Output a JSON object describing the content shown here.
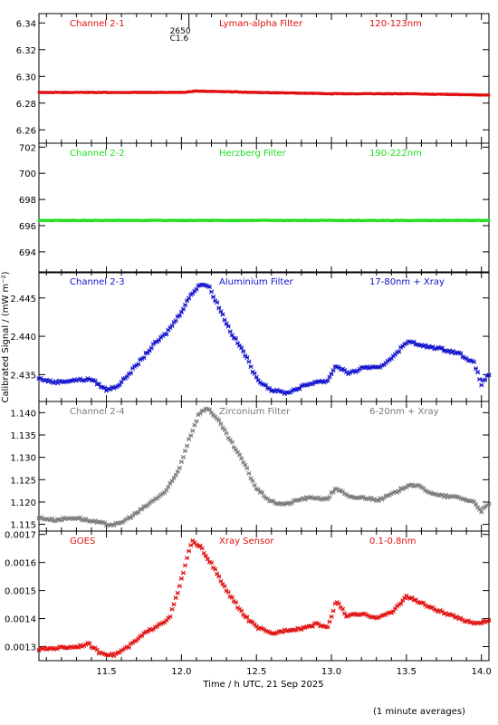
{
  "chart_data": {
    "type": "scatter",
    "x_label": "Time / h UTC, 21 Sep 2025",
    "y_label": "Calibrated Signal / (mW m⁻²)",
    "x_range": [
      11.05,
      14.05
    ],
    "x_ticks": [
      "11.5",
      "12.0",
      "12.5",
      "13.0",
      "13.5",
      "14.0"
    ],
    "footnote": "(1 minute averages)",
    "flare_marker": {
      "x": 12.05,
      "lines": [
        "2650",
        "C1.6"
      ]
    },
    "panels": [
      {
        "channel": "Channel 2-1",
        "filter": "Lyman-alpha Filter",
        "band": "120-123nm",
        "color": "#e01010",
        "y_range": [
          6.25,
          6.347
        ],
        "y_ticks": [
          "6.26",
          "6.28",
          "6.30",
          "6.32",
          "6.34"
        ],
        "tick_values": [
          6.26,
          6.28,
          6.3,
          6.32,
          6.34
        ],
        "points": [
          [
            11.05,
            6.288
          ],
          [
            11.5,
            6.288
          ],
          [
            12.0,
            6.288
          ],
          [
            12.1,
            6.289
          ],
          [
            12.5,
            6.288
          ],
          [
            13.0,
            6.287
          ],
          [
            13.5,
            6.287
          ],
          [
            14.05,
            6.286
          ]
        ]
      },
      {
        "channel": "Channel 2-2",
        "filter": "Herzberg Filter",
        "band": "190-222nm",
        "color": "#20e020",
        "y_range": [
          692.4,
          702.3
        ],
        "y_ticks": [
          "694",
          "696",
          "698",
          "700",
          "702"
        ],
        "tick_values": [
          694,
          696,
          698,
          700,
          702
        ],
        "points": [
          [
            11.05,
            696.4
          ],
          [
            11.5,
            696.4
          ],
          [
            12.0,
            696.4
          ],
          [
            12.5,
            696.4
          ],
          [
            13.0,
            696.4
          ],
          [
            13.5,
            696.4
          ],
          [
            14.05,
            696.4
          ]
        ]
      },
      {
        "channel": "Channel 2-3",
        "filter": "Aluminium Filter",
        "band": "17-80nm + Xray",
        "color": "#1010cc",
        "y_range": [
          2.4315,
          2.4484
        ],
        "y_ticks": [
          "2.435",
          "2.440",
          "2.445"
        ],
        "tick_values": [
          2.435,
          2.44,
          2.445
        ],
        "points": [
          [
            11.05,
            2.4345
          ],
          [
            11.15,
            2.434
          ],
          [
            11.3,
            2.4343
          ],
          [
            11.4,
            2.4344
          ],
          [
            11.5,
            2.433
          ],
          [
            11.58,
            2.4336
          ],
          [
            11.7,
            2.4362
          ],
          [
            11.82,
            2.439
          ],
          [
            11.9,
            2.4404
          ],
          [
            11.98,
            2.4426
          ],
          [
            12.05,
            2.445
          ],
          [
            12.12,
            2.4468
          ],
          [
            12.18,
            2.4466
          ],
          [
            12.25,
            2.4438
          ],
          [
            12.33,
            2.4405
          ],
          [
            12.42,
            2.4378
          ],
          [
            12.5,
            2.4345
          ],
          [
            12.6,
            2.433
          ],
          [
            12.7,
            2.4326
          ],
          [
            12.8,
            2.4334
          ],
          [
            12.9,
            2.4341
          ],
          [
            12.97,
            2.4341
          ],
          [
            13.03,
            2.4362
          ],
          [
            13.12,
            2.4351
          ],
          [
            13.22,
            2.436
          ],
          [
            13.32,
            2.4358
          ],
          [
            13.42,
            2.4376
          ],
          [
            13.52,
            2.4395
          ],
          [
            13.58,
            2.4388
          ],
          [
            13.7,
            2.4385
          ],
          [
            13.85,
            2.4378
          ],
          [
            13.95,
            2.4365
          ],
          [
            14.0,
            2.4338
          ],
          [
            14.05,
            2.435
          ]
        ]
      },
      {
        "channel": "Channel 2-4",
        "filter": "Zirconium Filter",
        "band": "6-20nm + Xray",
        "color": "#7a7a7a",
        "y_range": [
          1.1135,
          1.1425
        ],
        "y_ticks": [
          "1.115",
          "1.120",
          "1.125",
          "1.130",
          "1.135",
          "1.140"
        ],
        "tick_values": [
          1.115,
          1.12,
          1.125,
          1.13,
          1.135,
          1.14
        ],
        "points": [
          [
            11.05,
            1.1165
          ],
          [
            11.15,
            1.116
          ],
          [
            11.3,
            1.1165
          ],
          [
            11.4,
            1.1157
          ],
          [
            11.5,
            1.115
          ],
          [
            11.58,
            1.115
          ],
          [
            11.7,
            1.1175
          ],
          [
            11.82,
            1.1205
          ],
          [
            11.9,
            1.1225
          ],
          [
            11.98,
            1.127
          ],
          [
            12.05,
            1.134
          ],
          [
            12.12,
            1.14
          ],
          [
            12.18,
            1.141
          ],
          [
            12.25,
            1.138
          ],
          [
            12.33,
            1.1335
          ],
          [
            12.42,
            1.1285
          ],
          [
            12.5,
            1.123
          ],
          [
            12.6,
            1.12
          ],
          [
            12.7,
            1.1195
          ],
          [
            12.8,
            1.1207
          ],
          [
            12.9,
            1.121
          ],
          [
            12.97,
            1.1205
          ],
          [
            13.03,
            1.1232
          ],
          [
            13.12,
            1.121
          ],
          [
            13.22,
            1.121
          ],
          [
            13.32,
            1.1205
          ],
          [
            13.42,
            1.122
          ],
          [
            13.52,
            1.124
          ],
          [
            13.58,
            1.1235
          ],
          [
            13.7,
            1.1215
          ],
          [
            13.85,
            1.121
          ],
          [
            13.95,
            1.12
          ],
          [
            14.0,
            1.118
          ],
          [
            14.05,
            1.1195
          ]
        ]
      },
      {
        "channel": "GOES",
        "filter": "Xray Sensor",
        "band": "0.1-0.8nm",
        "color": "#e01010",
        "y_range": [
          0.00125,
          0.001712
        ],
        "y_ticks": [
          "0.0013",
          "0.0014",
          "0.0015",
          "0.0016",
          "0.0017"
        ],
        "tick_values": [
          0.0013,
          0.0014,
          0.0015,
          0.0016,
          0.0017
        ],
        "points": [
          [
            11.05,
            0.00129
          ],
          [
            11.15,
            0.001295
          ],
          [
            11.3,
            0.0013
          ],
          [
            11.38,
            0.00131
          ],
          [
            11.45,
            0.00128
          ],
          [
            11.55,
            0.00127
          ],
          [
            11.65,
            0.0013
          ],
          [
            11.75,
            0.001345
          ],
          [
            11.85,
            0.00138
          ],
          [
            11.92,
            0.0014
          ],
          [
            11.98,
            0.0015
          ],
          [
            12.03,
            0.0016
          ],
          [
            12.07,
            0.001675
          ],
          [
            12.12,
            0.00166
          ],
          [
            12.2,
            0.001595
          ],
          [
            12.3,
            0.0015
          ],
          [
            12.42,
            0.00141
          ],
          [
            12.5,
            0.00137
          ],
          [
            12.6,
            0.001345
          ],
          [
            12.7,
            0.00136
          ],
          [
            12.8,
            0.001365
          ],
          [
            12.9,
            0.00138
          ],
          [
            12.98,
            0.00137
          ],
          [
            13.03,
            0.001465
          ],
          [
            13.1,
            0.00141
          ],
          [
            13.2,
            0.001415
          ],
          [
            13.3,
            0.001405
          ],
          [
            13.4,
            0.00142
          ],
          [
            13.5,
            0.00148
          ],
          [
            13.58,
            0.00146
          ],
          [
            13.7,
            0.00143
          ],
          [
            13.85,
            0.0014
          ],
          [
            13.95,
            0.001385
          ],
          [
            14.05,
            0.00139
          ]
        ]
      }
    ]
  }
}
